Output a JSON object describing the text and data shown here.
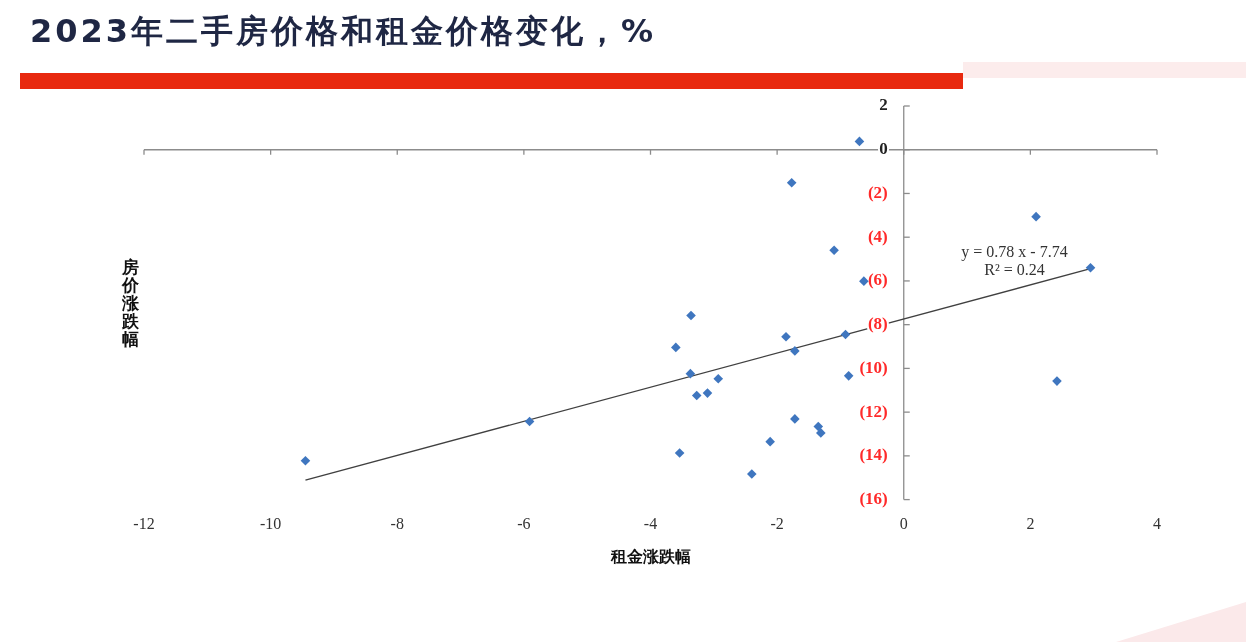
{
  "chart_data": {
    "type": "scatter",
    "title": "2023年二手房价格和租金价格变化，%",
    "xlabel": "租金涨跌幅",
    "ylabel": "房价涨跌幅",
    "xlim": [
      -12,
      4
    ],
    "xticks": [
      -12,
      -10,
      -8,
      -6,
      -4,
      -2,
      0,
      2,
      4
    ],
    "ylim": [
      -16,
      2
    ],
    "yticks": [
      2,
      0,
      {
        "value": -2,
        "label": "(2)"
      },
      {
        "value": -4,
        "label": "(4)"
      },
      {
        "value": -6,
        "label": "(6)"
      },
      {
        "value": -8,
        "label": "(8)"
      },
      {
        "value": -10,
        "label": "(10)"
      },
      {
        "value": -12,
        "label": "(12)"
      },
      {
        "value": -14,
        "label": "(14)"
      },
      {
        "value": -16,
        "label": "(16)"
      }
    ],
    "series": [
      {
        "type": "scatter",
        "marker": "diamond",
        "color": "#3f76bf",
        "x": [
          -9.45,
          -5.91,
          -3.6,
          -3.54,
          -3.37,
          -3.36,
          -3.27,
          -3.1,
          -2.93,
          -2.4,
          -2.11,
          -1.86,
          -1.77,
          -1.72,
          -1.72,
          -1.35,
          -1.31,
          -1.1,
          -0.92,
          -0.87,
          -0.7,
          -0.63,
          2.09,
          2.42,
          2.95
        ],
        "values": [
          -14.22,
          -12.43,
          -9.04,
          -13.87,
          -10.24,
          -7.58,
          -11.24,
          -11.13,
          -10.47,
          -14.83,
          -13.35,
          -8.55,
          -1.51,
          -9.2,
          -12.31,
          -12.66,
          -12.95,
          -4.6,
          -8.45,
          -10.34,
          0.38,
          -6.01,
          -3.06,
          -10.58,
          -5.4
        ]
      },
      {
        "type": "line",
        "marker": "none",
        "color": "#404040",
        "x": [
          -9.45,
          2.95
        ],
        "values": [
          -15.11,
          -5.44
        ]
      }
    ],
    "annotations": [
      "y = 0.78 x - 7.74",
      "R² = 0.24"
    ]
  }
}
